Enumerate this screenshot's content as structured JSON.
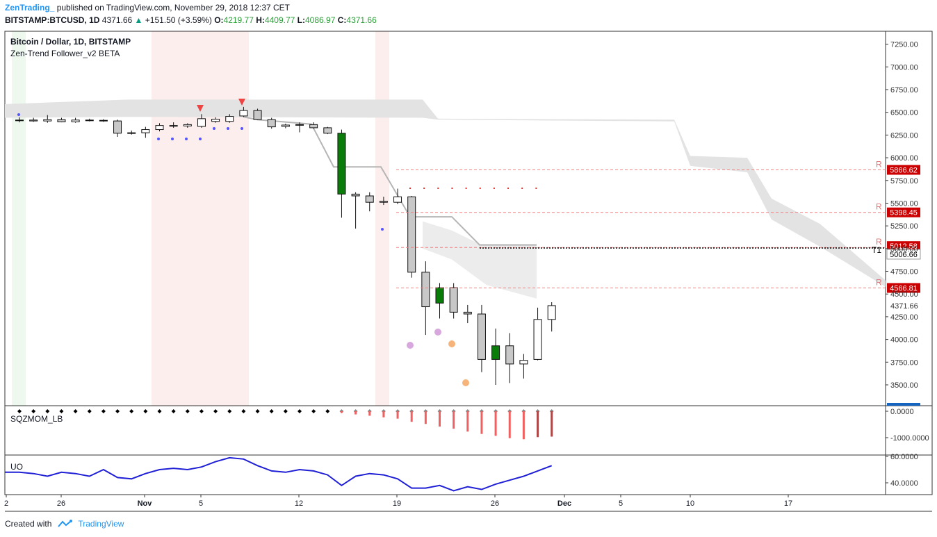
{
  "header": {
    "publisher": "ZenTrading_",
    "published_text": "published on TradingView.com, November 29, 2018 12:37 CET",
    "symbol": "BITSTAMP:BTCUSD, 1D",
    "last": "4371.66",
    "change": "+151.50 (+3.59%)",
    "open_label": "O:",
    "open": "4219.77",
    "high_label": "H:",
    "high": "4409.77",
    "low_label": "L:",
    "low": "4086.97",
    "close_label": "C:",
    "close": "4371.66"
  },
  "legend": {
    "title": "Bitcoin / Dollar, 1D, BITSTAMP",
    "indicator": "Zen-Trend Follower_v2 BETA"
  },
  "panes": {
    "sqzmom": "SQZMOM_LB",
    "uo": "UO"
  },
  "footer": {
    "created_with": "Created with",
    "brand": "TradingView"
  },
  "colors": {
    "up": "#ffffff",
    "down": "#c8c8c8",
    "green": "#0a7c0a",
    "red_label": "#cc0000",
    "blue_label": "#1565c0",
    "sqz_bar": "#f06060",
    "uo_line": "#1f1fd6"
  },
  "chart_data": [
    {
      "type": "candlestick",
      "title": "Bitcoin / Dollar, 1D, BITSTAMP",
      "xlabel": "",
      "ylabel": "",
      "x_ticks": [
        "2",
        "26",
        "Nov",
        "5",
        "12",
        "19",
        "26",
        "Dec",
        "5",
        "10",
        "17"
      ],
      "y_ticks": [
        "7250.00",
        "7000.00",
        "6750.00",
        "6500.00",
        "6250.00",
        "6000.00",
        "5750.00",
        "5500.00",
        "5250.00",
        "5000.00",
        "4750.00",
        "4500.00",
        "4250.00",
        "4000.00",
        "3750.00",
        "3500.00"
      ],
      "ylim": [
        3250,
        7500
      ],
      "candles": [
        {
          "o": 6410,
          "h": 6445,
          "l": 6390,
          "c": 6415
        },
        {
          "o": 6415,
          "h": 6440,
          "l": 6395,
          "c": 6405
        },
        {
          "o": 6405,
          "h": 6470,
          "l": 6385,
          "c": 6420
        },
        {
          "o": 6420,
          "h": 6440,
          "l": 6390,
          "c": 6395
        },
        {
          "o": 6395,
          "h": 6440,
          "l": 6385,
          "c": 6415
        },
        {
          "o": 6415,
          "h": 6430,
          "l": 6400,
          "c": 6410
        },
        {
          "o": 6410,
          "h": 6425,
          "l": 6395,
          "c": 6412
        },
        {
          "o": 6405,
          "h": 6420,
          "l": 6230,
          "c": 6270
        },
        {
          "o": 6270,
          "h": 6300,
          "l": 6255,
          "c": 6275
        },
        {
          "o": 6275,
          "h": 6340,
          "l": 6220,
          "c": 6310
        },
        {
          "o": 6310,
          "h": 6380,
          "l": 6290,
          "c": 6355
        },
        {
          "o": 6355,
          "h": 6390,
          "l": 6330,
          "c": 6350
        },
        {
          "o": 6350,
          "h": 6380,
          "l": 6330,
          "c": 6365
        },
        {
          "o": 6345,
          "h": 6480,
          "l": 6330,
          "c": 6430
        },
        {
          "o": 6400,
          "h": 6445,
          "l": 6385,
          "c": 6425
        },
        {
          "o": 6400,
          "h": 6480,
          "l": 6385,
          "c": 6455
        },
        {
          "o": 6460,
          "h": 6560,
          "l": 6450,
          "c": 6520
        },
        {
          "o": 6520,
          "h": 6540,
          "l": 6415,
          "c": 6420
        },
        {
          "o": 6420,
          "h": 6440,
          "l": 6320,
          "c": 6340
        },
        {
          "o": 6345,
          "h": 6375,
          "l": 6325,
          "c": 6360
        },
        {
          "o": 6360,
          "h": 6390,
          "l": 6280,
          "c": 6365
        },
        {
          "o": 6365,
          "h": 6390,
          "l": 6320,
          "c": 6330
        },
        {
          "o": 6330,
          "h": 6340,
          "l": 6260,
          "c": 6270
        },
        {
          "o": 6270,
          "h": 6310,
          "l": 5340,
          "c": 5600
        },
        {
          "o": 5600,
          "h": 5620,
          "l": 5220,
          "c": 5580
        },
        {
          "o": 5580,
          "h": 5620,
          "l": 5410,
          "c": 5510
        },
        {
          "o": 5510,
          "h": 5570,
          "l": 5480,
          "c": 5520
        },
        {
          "o": 5510,
          "h": 5660,
          "l": 5490,
          "c": 5570
        },
        {
          "o": 5570,
          "h": 5580,
          "l": 4680,
          "c": 4740
        },
        {
          "o": 4740,
          "h": 4860,
          "l": 4050,
          "c": 4360
        },
        {
          "o": 4400,
          "h": 4620,
          "l": 4230,
          "c": 4570
        },
        {
          "o": 4570,
          "h": 4620,
          "l": 4230,
          "c": 4300
        },
        {
          "o": 4300,
          "h": 4380,
          "l": 4180,
          "c": 4280
        },
        {
          "o": 4280,
          "h": 4380,
          "l": 3640,
          "c": 3780
        },
        {
          "o": 3780,
          "h": 4120,
          "l": 3500,
          "c": 3930
        },
        {
          "o": 3930,
          "h": 4070,
          "l": 3520,
          "c": 3730
        },
        {
          "o": 3730,
          "h": 3840,
          "l": 3570,
          "c": 3770
        },
        {
          "o": 3780,
          "h": 4350,
          "l": 3770,
          "c": 4220
        },
        {
          "o": 4220,
          "h": 4410,
          "l": 4087,
          "c": 4372
        }
      ],
      "levels": [
        {
          "value": 5866.62,
          "label": "5866.62",
          "tag": "R"
        },
        {
          "value": 5398.45,
          "label": "5398.45",
          "tag": "R"
        },
        {
          "value": 5012.58,
          "label": "5012.58",
          "tag": "R"
        },
        {
          "value": 5006.66,
          "label": "5006.66",
          "tag": "T1"
        },
        {
          "value": 4566.81,
          "label": "4566.81",
          "tag": "R"
        },
        {
          "value": 4371.66,
          "label": "4371.66",
          "tag": ""
        }
      ]
    },
    {
      "type": "bar",
      "title": "SQZMOM_LB",
      "y_ticks": [
        "0.0000",
        "-1000.0000"
      ],
      "ylim": [
        -1150,
        80
      ],
      "values": [
        0,
        0,
        0,
        0,
        0,
        0,
        0,
        0,
        0,
        0,
        0,
        0,
        0,
        0,
        0,
        0,
        0,
        0,
        0,
        0,
        0,
        0,
        0,
        -60,
        -120,
        -170,
        -230,
        -280,
        -400,
        -480,
        -580,
        -660,
        -770,
        -860,
        -930,
        -1020,
        -1060,
        -980,
        -960
      ]
    },
    {
      "type": "line",
      "title": "UO",
      "y_ticks": [
        "60.0000",
        "40.0000"
      ],
      "ylim": [
        28,
        62
      ],
      "values": [
        48,
        47,
        45,
        48,
        47,
        45,
        50,
        44,
        43,
        47,
        50,
        51,
        50,
        52,
        56,
        59,
        58,
        53,
        49,
        48,
        50,
        49,
        46,
        38,
        45,
        47,
        46,
        43,
        36,
        36,
        38,
        34,
        37,
        35,
        39,
        42,
        45,
        49,
        53
      ]
    }
  ]
}
